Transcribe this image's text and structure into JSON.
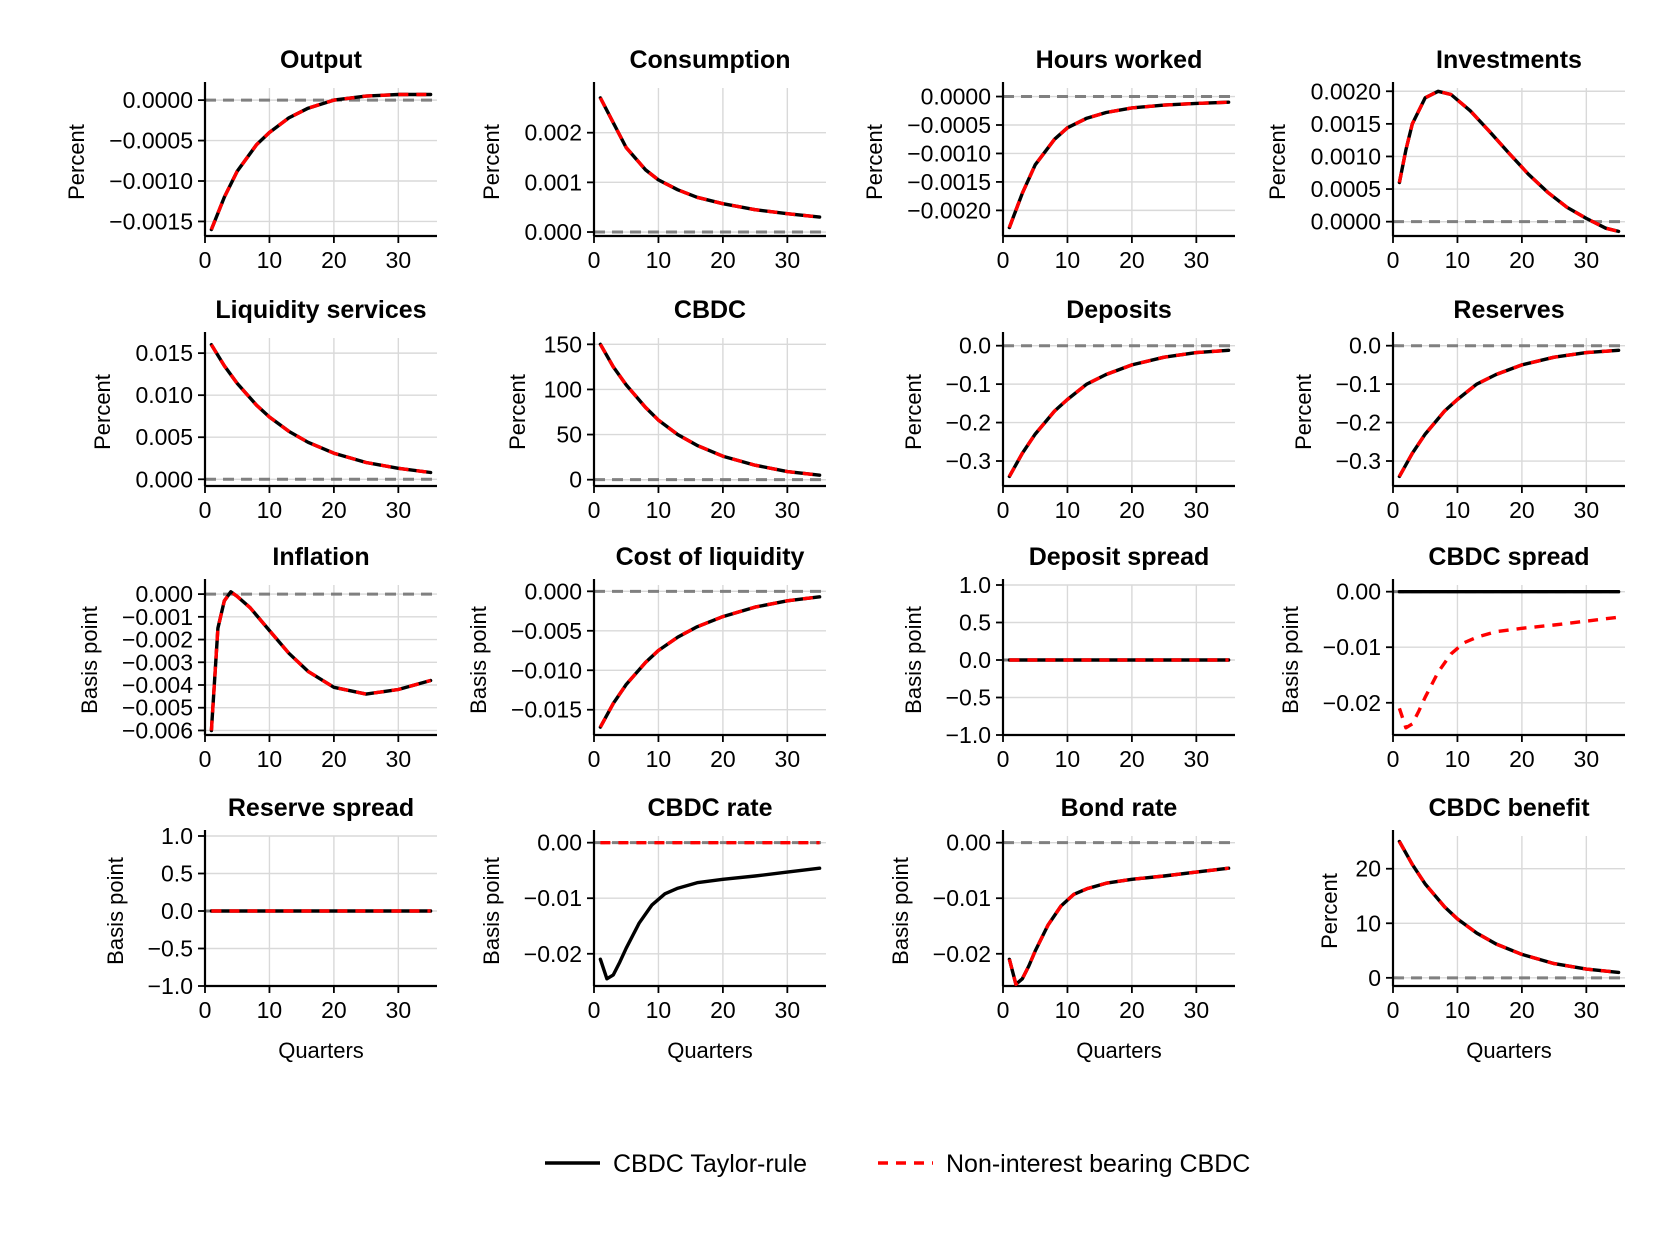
{
  "chart_data": {
    "type": "line",
    "layout": "grid 4x4",
    "x_label": "Quarters",
    "x_range": [
      0,
      36
    ],
    "x_ticks": [
      0,
      10,
      20,
      30
    ],
    "legend": {
      "placement": "bottom-center",
      "entries": [
        {
          "name": "CBDC Taylor-rule",
          "color": "#000000",
          "style": "solid"
        },
        {
          "name": "Non-interest bearing CBDC",
          "color": "#ff0000",
          "style": "dashed"
        }
      ]
    },
    "panels": [
      {
        "title": "Output",
        "ylabel": "Percent",
        "ylim": [
          -0.00168,
          0.00015
        ],
        "yticks": [
          0,
          -0.0005,
          -0.001,
          -0.0015
        ],
        "ytick_labels": [
          "0.0000",
          "−0.0005",
          "−0.0010",
          "−0.0015"
        ],
        "x": [
          1,
          3,
          5,
          8,
          10,
          13,
          16,
          20,
          25,
          30,
          35
        ],
        "taylor": [
          -0.0016,
          -0.0012,
          -0.00088,
          -0.00055,
          -0.0004,
          -0.00022,
          -0.0001,
          0.0,
          5e-05,
          7e-05,
          7e-05
        ],
        "non_interest": [
          -0.0016,
          -0.0012,
          -0.00088,
          -0.00055,
          -0.0004,
          -0.00022,
          -0.0001,
          0.0,
          5e-05,
          7e-05,
          7e-05
        ]
      },
      {
        "title": "Consumption",
        "ylabel": "Percent",
        "ylim": [
          -8e-05,
          0.0029
        ],
        "yticks": [
          0,
          0.001,
          0.002
        ],
        "ytick_labels": [
          "0.000",
          "0.001",
          "0.002"
        ],
        "x": [
          1,
          3,
          5,
          8,
          10,
          13,
          16,
          20,
          25,
          30,
          35
        ],
        "taylor": [
          0.0027,
          0.0022,
          0.0017,
          0.00125,
          0.00105,
          0.00085,
          0.0007,
          0.00057,
          0.00045,
          0.00037,
          0.0003
        ],
        "non_interest": [
          0.0027,
          0.0022,
          0.0017,
          0.00125,
          0.00105,
          0.00085,
          0.0007,
          0.00057,
          0.00045,
          0.00037,
          0.0003
        ]
      },
      {
        "title": "Hours worked",
        "ylabel": "Percent",
        "ylim": [
          -0.00245,
          0.00015
        ],
        "yticks": [
          0,
          -0.0005,
          -0.001,
          -0.0015,
          -0.002
        ],
        "ytick_labels": [
          "0.0000",
          "−0.0005",
          "−0.0010",
          "−0.0015",
          "−0.0020"
        ],
        "x": [
          1,
          3,
          5,
          8,
          10,
          13,
          16,
          20,
          25,
          30,
          35
        ],
        "taylor": [
          -0.0023,
          -0.0017,
          -0.0012,
          -0.00075,
          -0.00055,
          -0.00038,
          -0.00028,
          -0.0002,
          -0.00015,
          -0.00012,
          -0.0001
        ],
        "non_interest": [
          -0.0023,
          -0.0017,
          -0.0012,
          -0.00075,
          -0.00055,
          -0.00038,
          -0.00028,
          -0.0002,
          -0.00015,
          -0.00012,
          -0.0001
        ]
      },
      {
        "title": "Investments",
        "ylabel": "Percent",
        "ylim": [
          -0.00022,
          0.00205
        ],
        "yticks": [
          0,
          0.0005,
          0.001,
          0.0015,
          0.002
        ],
        "ytick_labels": [
          "0.0000",
          "0.0005",
          "0.0010",
          "0.0015",
          "0.0020"
        ],
        "x": [
          1,
          2,
          3,
          5,
          7,
          9,
          12,
          15,
          18,
          21,
          24,
          27,
          30,
          33,
          35
        ],
        "taylor": [
          0.0006,
          0.0011,
          0.0015,
          0.0019,
          0.002,
          0.00195,
          0.0017,
          0.00138,
          0.00105,
          0.00073,
          0.00045,
          0.00022,
          5e-05,
          -0.0001,
          -0.00015
        ],
        "non_interest": [
          0.0006,
          0.0011,
          0.0015,
          0.0019,
          0.002,
          0.00195,
          0.0017,
          0.00138,
          0.00105,
          0.00073,
          0.00045,
          0.00022,
          5e-05,
          -0.0001,
          -0.00015
        ]
      },
      {
        "title": "Liquidity services",
        "ylabel": "Percent",
        "ylim": [
          -0.0008,
          0.0168
        ],
        "yticks": [
          0,
          0.005,
          0.01,
          0.015
        ],
        "ytick_labels": [
          "0.000",
          "0.005",
          "0.010",
          "0.015"
        ],
        "x": [
          1,
          3,
          5,
          8,
          10,
          13,
          16,
          20,
          25,
          30,
          35
        ],
        "taylor": [
          0.016,
          0.0135,
          0.0114,
          0.0088,
          0.0074,
          0.0057,
          0.0044,
          0.0031,
          0.002,
          0.0013,
          0.0008
        ],
        "non_interest": [
          0.016,
          0.0135,
          0.0114,
          0.0088,
          0.0074,
          0.0057,
          0.0044,
          0.0031,
          0.002,
          0.0013,
          0.0008
        ]
      },
      {
        "title": "CBDC",
        "ylabel": "Percent",
        "ylim": [
          -7,
          157
        ],
        "yticks": [
          0,
          50,
          100,
          150
        ],
        "ytick_labels": [
          "0",
          "50",
          "100",
          "150"
        ],
        "x": [
          1,
          3,
          5,
          8,
          10,
          13,
          16,
          20,
          25,
          30,
          35
        ],
        "taylor": [
          150,
          125,
          105,
          80,
          66,
          50,
          38,
          26,
          16,
          9,
          5
        ],
        "non_interest": [
          150,
          125,
          105,
          80,
          66,
          50,
          38,
          26,
          16,
          9,
          5
        ]
      },
      {
        "title": "Deposits",
        "ylabel": "Percent",
        "ylim": [
          -0.365,
          0.02
        ],
        "yticks": [
          0,
          -0.1,
          -0.2,
          -0.3
        ],
        "ytick_labels": [
          "0.0",
          "−0.1",
          "−0.2",
          "−0.3"
        ],
        "x": [
          1,
          3,
          5,
          8,
          10,
          13,
          16,
          20,
          25,
          30,
          35
        ],
        "taylor": [
          -0.34,
          -0.28,
          -0.23,
          -0.17,
          -0.14,
          -0.1,
          -0.075,
          -0.05,
          -0.03,
          -0.018,
          -0.012
        ],
        "non_interest": [
          -0.34,
          -0.28,
          -0.23,
          -0.17,
          -0.14,
          -0.1,
          -0.075,
          -0.05,
          -0.03,
          -0.018,
          -0.012
        ]
      },
      {
        "title": "Reserves",
        "ylabel": "Percent",
        "ylim": [
          -0.365,
          0.02
        ],
        "yticks": [
          0,
          -0.1,
          -0.2,
          -0.3
        ],
        "ytick_labels": [
          "0.0",
          "−0.1",
          "−0.2",
          "−0.3"
        ],
        "x": [
          1,
          3,
          5,
          8,
          10,
          13,
          16,
          20,
          25,
          30,
          35
        ],
        "taylor": [
          -0.34,
          -0.28,
          -0.23,
          -0.17,
          -0.14,
          -0.1,
          -0.075,
          -0.05,
          -0.03,
          -0.018,
          -0.012
        ],
        "non_interest": [
          -0.34,
          -0.28,
          -0.23,
          -0.17,
          -0.14,
          -0.1,
          -0.075,
          -0.05,
          -0.03,
          -0.018,
          -0.012
        ]
      },
      {
        "title": "Inflation",
        "ylabel": "Basis point",
        "ylim": [
          -0.0062,
          0.0004
        ],
        "yticks": [
          0,
          -0.001,
          -0.002,
          -0.003,
          -0.004,
          -0.005,
          -0.006
        ],
        "ytick_labels": [
          "0.000",
          "−0.001",
          "−0.002",
          "−0.003",
          "−0.004",
          "−0.005",
          "−0.006"
        ],
        "x": [
          1,
          2,
          3,
          4,
          5,
          7,
          10,
          13,
          16,
          20,
          25,
          30,
          35
        ],
        "taylor": [
          -0.006,
          -0.0015,
          -0.0003,
          0.0001,
          -0.0001,
          -0.0006,
          -0.0016,
          -0.0026,
          -0.0034,
          -0.0041,
          -0.0044,
          -0.0042,
          -0.0038
        ],
        "non_interest": [
          -0.006,
          -0.0015,
          -0.0003,
          0.0001,
          -0.0001,
          -0.0006,
          -0.0016,
          -0.0026,
          -0.0034,
          -0.0041,
          -0.0044,
          -0.0042,
          -0.0038
        ]
      },
      {
        "title": "Cost of liquidity",
        "ylabel": "Basis point",
        "ylim": [
          -0.0182,
          0.0008
        ],
        "yticks": [
          0,
          -0.005,
          -0.01,
          -0.015
        ],
        "ytick_labels": [
          "0.000",
          "−0.005",
          "−0.010",
          "−0.015"
        ],
        "x": [
          1,
          3,
          5,
          8,
          10,
          13,
          16,
          20,
          25,
          30,
          35
        ],
        "taylor": [
          -0.0172,
          -0.0142,
          -0.0118,
          -0.009,
          -0.0075,
          -0.0058,
          -0.0045,
          -0.0032,
          -0.002,
          -0.0012,
          -0.0007
        ],
        "non_interest": [
          -0.0172,
          -0.0142,
          -0.0118,
          -0.009,
          -0.0075,
          -0.0058,
          -0.0045,
          -0.0032,
          -0.002,
          -0.0012,
          -0.0007
        ]
      },
      {
        "title": "Deposit spread",
        "ylabel": "Basis point",
        "ylim": [
          -1.0,
          1.0
        ],
        "yticks": [
          1.0,
          0.5,
          0.0,
          -0.5,
          -1.0
        ],
        "ytick_labels": [
          "1.0",
          "0.5",
          "0.0",
          "−0.5",
          "−1.0"
        ],
        "x": [
          1,
          35
        ],
        "taylor": [
          0,
          0
        ],
        "non_interest": [
          0,
          0
        ]
      },
      {
        "title": "CBDC spread",
        "ylabel": "Basis point",
        "ylim": [
          -0.0258,
          0.0012
        ],
        "yticks": [
          0,
          -0.01,
          -0.02
        ],
        "ytick_labels": [
          "0.00",
          "−0.01",
          "−0.02"
        ],
        "x": [
          1,
          2,
          3,
          4,
          5,
          7,
          9,
          11,
          13,
          16,
          20,
          25,
          30,
          35
        ],
        "taylor": [
          0,
          0,
          0,
          0,
          0,
          0,
          0,
          0,
          0,
          0,
          0,
          0,
          0,
          0
        ],
        "non_interest": [
          -0.021,
          -0.0245,
          -0.0238,
          -0.0215,
          -0.019,
          -0.0145,
          -0.0112,
          -0.0092,
          -0.0082,
          -0.0072,
          -0.0066,
          -0.006,
          -0.0053,
          -0.0046
        ]
      },
      {
        "title": "Reserve spread",
        "ylabel": "Basis point",
        "ylim": [
          -1.0,
          1.0
        ],
        "yticks": [
          1.0,
          0.5,
          0.0,
          -0.5,
          -1.0
        ],
        "ytick_labels": [
          "1.0",
          "0.5",
          "0.0",
          "−0.5",
          "−1.0"
        ],
        "x": [
          1,
          35
        ],
        "taylor": [
          0,
          0
        ],
        "non_interest": [
          0,
          0
        ]
      },
      {
        "title": "CBDC rate",
        "ylabel": "Basis point",
        "ylim": [
          -0.0258,
          0.0012
        ],
        "yticks": [
          0,
          -0.01,
          -0.02
        ],
        "ytick_labels": [
          "0.00",
          "−0.01",
          "−0.02"
        ],
        "x": [
          1,
          2,
          3,
          4,
          5,
          7,
          9,
          11,
          13,
          16,
          20,
          25,
          30,
          35
        ],
        "taylor": [
          -0.021,
          -0.0245,
          -0.0238,
          -0.0215,
          -0.019,
          -0.0145,
          -0.0112,
          -0.0092,
          -0.0082,
          -0.0072,
          -0.0066,
          -0.006,
          -0.0053,
          -0.0046
        ],
        "non_interest": [
          0,
          0,
          0,
          0,
          0,
          0,
          0,
          0,
          0,
          0,
          0,
          0,
          0,
          0
        ]
      },
      {
        "title": "Bond rate",
        "ylabel": "Basis point",
        "ylim": [
          -0.0258,
          0.0012
        ],
        "yticks": [
          0,
          -0.01,
          -0.02
        ],
        "ytick_labels": [
          "0.00",
          "−0.01",
          "−0.02"
        ],
        "x": [
          1,
          2,
          3,
          4,
          5,
          7,
          9,
          11,
          13,
          16,
          20,
          25,
          30,
          35
        ],
        "taylor": [
          -0.021,
          -0.0255,
          -0.0245,
          -0.0222,
          -0.0195,
          -0.0148,
          -0.0114,
          -0.0093,
          -0.0083,
          -0.0073,
          -0.0066,
          -0.006,
          -0.0053,
          -0.0046
        ],
        "non_interest": [
          -0.021,
          -0.0255,
          -0.0245,
          -0.0222,
          -0.0195,
          -0.0148,
          -0.0114,
          -0.0093,
          -0.0083,
          -0.0073,
          -0.0066,
          -0.006,
          -0.0053,
          -0.0046
        ]
      },
      {
        "title": "CBDC benefit",
        "ylabel": "Percent",
        "ylim": [
          -1.5,
          26
        ],
        "yticks": [
          0,
          10,
          20
        ],
        "ytick_labels": [
          "0",
          "10",
          "20"
        ],
        "x": [
          1,
          3,
          5,
          8,
          10,
          13,
          16,
          20,
          25,
          30,
          35
        ],
        "taylor": [
          25,
          20.8,
          17.2,
          13,
          10.8,
          8.2,
          6.2,
          4.3,
          2.6,
          1.6,
          1.0
        ],
        "non_interest": [
          25,
          20.8,
          17.2,
          13,
          10.8,
          8.2,
          6.2,
          4.3,
          2.6,
          1.6,
          1.0
        ]
      }
    ]
  }
}
